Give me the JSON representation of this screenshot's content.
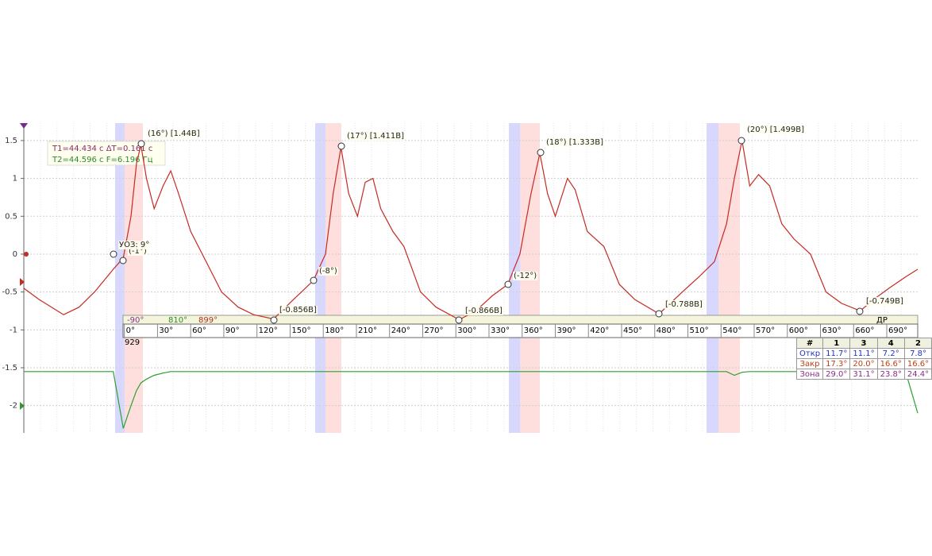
{
  "chart_data": {
    "type": "line",
    "x": [
      -91,
      -77,
      -55,
      -41,
      -27,
      -10,
      -1,
      6,
      11,
      15,
      20,
      27,
      35,
      42,
      49,
      60,
      74,
      88,
      103,
      117,
      135,
      153,
      171,
      182,
      189,
      196,
      203,
      211,
      218,
      225,
      232,
      243,
      253,
      268,
      282,
      303,
      318,
      333,
      347,
      358,
      368,
      376,
      383,
      390,
      401,
      408,
      419,
      434,
      448,
      462,
      484,
      505,
      520,
      534,
      545,
      552,
      559,
      566,
      574,
      584,
      595,
      606,
      621,
      635,
      649,
      666,
      678,
      692,
      707,
      718
    ],
    "series": [
      {
        "color": "#c62a22",
        "values": [
          -0.45,
          -0.6,
          -0.8,
          -0.7,
          -0.5,
          -0.2,
          -0.05,
          0.5,
          1.2,
          1.44,
          1.0,
          0.6,
          0.9,
          1.1,
          0.8,
          0.3,
          -0.1,
          -0.5,
          -0.7,
          -0.8,
          -0.856,
          -0.6,
          -0.35,
          0.0,
          0.8,
          1.411,
          0.8,
          0.5,
          0.95,
          1.0,
          0.6,
          0.3,
          0.1,
          -0.5,
          -0.7,
          -0.866,
          -0.75,
          -0.55,
          -0.4,
          0.0,
          0.8,
          1.333,
          0.8,
          0.5,
          1.0,
          0.85,
          0.3,
          0.1,
          -0.4,
          -0.6,
          -0.788,
          -0.5,
          -0.3,
          -0.1,
          0.4,
          1.0,
          1.499,
          0.9,
          1.05,
          0.9,
          0.4,
          0.2,
          0.0,
          -0.5,
          -0.65,
          -0.749,
          -0.6,
          -0.45,
          -0.3,
          -0.2
        ]
      },
      {
        "color": "#2ca02c",
        "values": [
          -1.55,
          -1.55,
          -1.55,
          -1.55,
          -1.55,
          -1.55,
          -2.3,
          -2.0,
          -1.8,
          -1.7,
          -1.65,
          -1.6,
          -1.57,
          -1.55,
          -1.55,
          -1.55,
          -1.55,
          -1.55,
          -1.55,
          -1.55,
          -1.55,
          -1.55,
          -1.55,
          -1.55,
          -1.55,
          -1.55,
          -1.55,
          -1.55,
          -1.55,
          -1.55,
          -1.55,
          -1.55,
          -1.55,
          -1.55,
          -1.55,
          -1.55,
          -1.55,
          -1.55,
          -1.55,
          -1.55,
          -1.55,
          -1.55,
          -1.55,
          -1.55,
          -1.55,
          -1.55,
          -1.55,
          -1.55,
          -1.55,
          -1.55,
          -1.55,
          -1.55,
          -1.55,
          -1.55,
          -1.55,
          -1.6,
          -1.56,
          -1.55,
          -1.55,
          -1.55,
          -1.55,
          -1.55,
          -1.55,
          -1.55,
          -1.55,
          -1.55,
          -1.55,
          -1.55,
          -1.55,
          -2.1
        ]
      }
    ],
    "xlim": [
      -91,
      718
    ],
    "ylim": [
      -2.36,
      1.73
    ],
    "yticks": [
      1.5,
      1,
      0.5,
      0,
      -0.5,
      -1,
      -1.5,
      -2
    ],
    "xticks": [
      {
        "value": 0,
        "label": "0°"
      },
      {
        "value": 30,
        "label": "30°"
      },
      {
        "value": 60,
        "label": "60°"
      },
      {
        "value": 90,
        "label": "90°"
      },
      {
        "value": 120,
        "label": "120°"
      },
      {
        "value": 150,
        "label": "150°"
      },
      {
        "value": 180,
        "label": "180°"
      },
      {
        "value": 210,
        "label": "210°"
      },
      {
        "value": 240,
        "label": "240°"
      },
      {
        "value": 270,
        "label": "270°"
      },
      {
        "value": 300,
        "label": "300°"
      },
      {
        "value": 330,
        "label": "330°"
      },
      {
        "value": 360,
        "label": "360°"
      },
      {
        "value": 390,
        "label": "390°"
      },
      {
        "value": 420,
        "label": "420°"
      },
      {
        "value": 450,
        "label": "450°"
      },
      {
        "value": 480,
        "label": "480°"
      },
      {
        "value": 510,
        "label": "510°"
      },
      {
        "value": 540,
        "label": "540°"
      },
      {
        "value": 570,
        "label": "570°"
      },
      {
        "value": 600,
        "label": "600°"
      },
      {
        "value": 630,
        "label": "630°"
      },
      {
        "value": 660,
        "label": "660°"
      },
      {
        "value": 690,
        "label": "690°"
      }
    ],
    "grid": true,
    "annotations": [
      "(16°) [1.44В]",
      "(17°) [1.411В]",
      "(18°) [1.333В]",
      "(20°) [1.499В]",
      "[-0.856В]",
      "[-0.866В]",
      "[-0.788В]",
      "[-0.749В]",
      "(-1°)",
      "(-8°)",
      "(-12°)",
      "УОЗ: 9°"
    ],
    "measure": [
      "T1=44.434 с ΔT=0.161 с",
      "T2=44.596 с F=6.196 Гц"
    ],
    "ruler_header": [
      "-90°",
      "810°",
      "899°",
      "ДР"
    ],
    "ruler_position": "929",
    "table": {
      "header": [
        "#",
        "1",
        "3",
        "4",
        "2"
      ],
      "rows": [
        [
          "Откр",
          "11.7°",
          "11.1°",
          "7.2°",
          "7.8°"
        ],
        [
          "Закр",
          "17.3°",
          "20.0°",
          "16.6°",
          "16.6°"
        ],
        [
          "Зона",
          "29.0°",
          "31.1°",
          "23.8°",
          "24.4°"
        ]
      ]
    }
  }
}
